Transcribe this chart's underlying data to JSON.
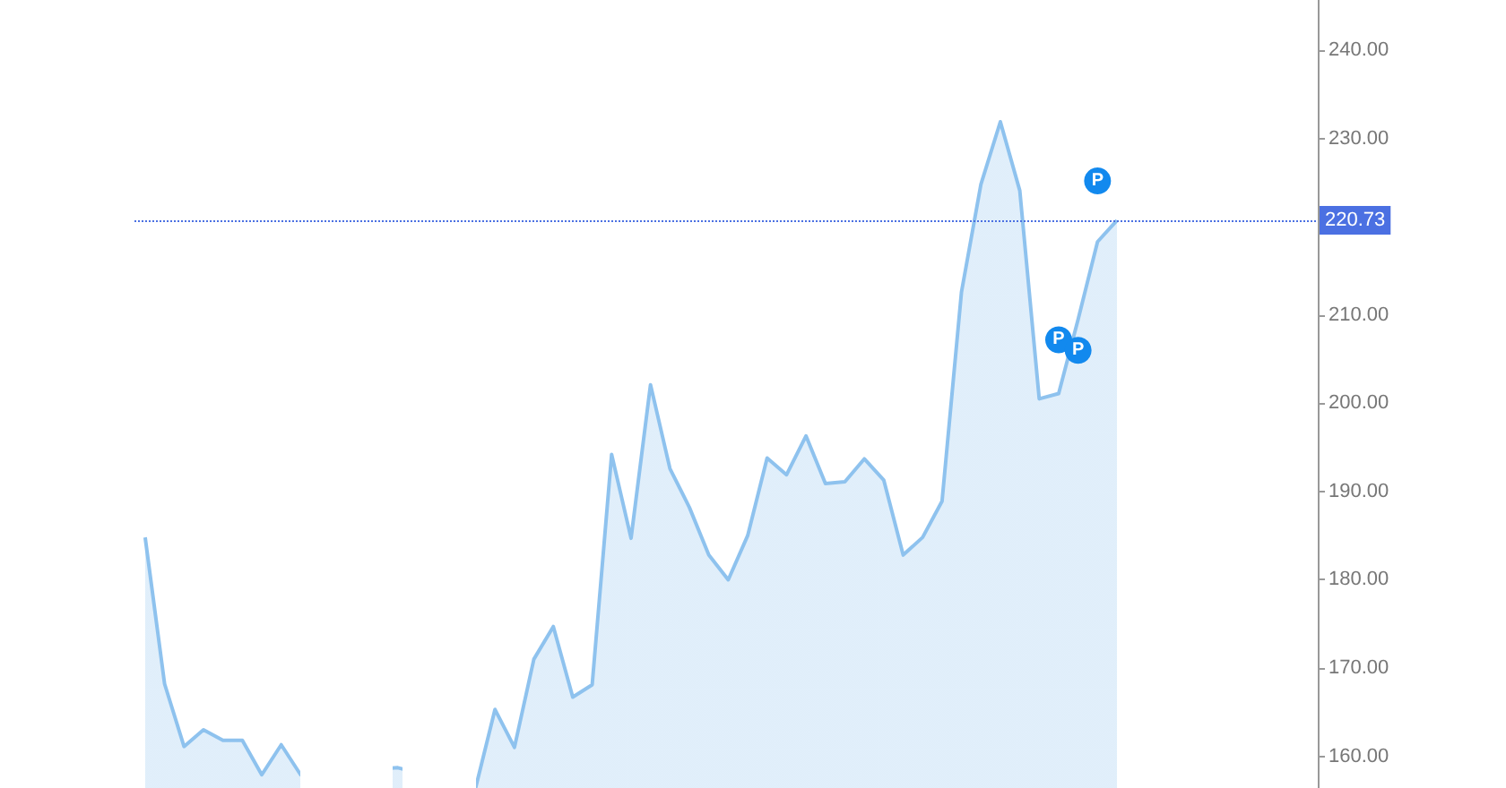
{
  "chart_data": {
    "type": "area",
    "categories": [
      null,
      null,
      null,
      null,
      null,
      null,
      null,
      null,
      null,
      null,
      null,
      null,
      null,
      null,
      null,
      null,
      null,
      null,
      null,
      null,
      null,
      null,
      null,
      null,
      null,
      null,
      null,
      null,
      null,
      null,
      null,
      null,
      null,
      null,
      null,
      null,
      null,
      null,
      null,
      null,
      null,
      null,
      null,
      null,
      null,
      null,
      null,
      null,
      null,
      null,
      null
    ],
    "values": [
      184.8,
      168.2,
      161.1,
      163.0,
      161.8,
      161.8,
      157.9,
      161.3,
      157.9,
      null,
      null,
      null,
      null,
      158.7,
      null,
      null,
      null,
      156.4,
      165.3,
      161.0,
      171.0,
      174.7,
      166.7,
      168.1,
      194.2,
      184.7,
      202.1,
      192.6,
      188.2,
      182.8,
      180.0,
      185.0,
      193.8,
      191.9,
      196.3,
      190.9,
      191.1,
      193.7,
      191.3,
      182.8,
      184.8,
      188.9,
      212.6,
      224.8,
      231.9,
      224.1,
      200.5,
      201.1,
      209.5,
      218.3,
      220.73
    ],
    "color": "#8ec2ee",
    "ylim": [
      156.4,
      245.7
    ],
    "yticks": [
      {
        "value": 160,
        "label": "160.00"
      },
      {
        "value": 170,
        "label": "170.00"
      },
      {
        "value": 180,
        "label": "180.00"
      },
      {
        "value": 190,
        "label": "190.00"
      },
      {
        "value": 200,
        "label": "200.00"
      },
      {
        "value": 210,
        "label": "210.00"
      },
      {
        "value": 230,
        "label": "230.00"
      },
      {
        "value": 240,
        "label": "240.00"
      }
    ],
    "ref_lines": [
      {
        "axis": "y",
        "value": 220.73,
        "label": "220.73",
        "color": "#4b70e2",
        "line_style": "dotted"
      }
    ],
    "annotations": [
      {
        "text": "P",
        "y": 225.2
      },
      {
        "text": "P",
        "y": 207.2
      },
      {
        "text": "P",
        "y": 206.0
      }
    ],
    "marker": "none"
  }
}
